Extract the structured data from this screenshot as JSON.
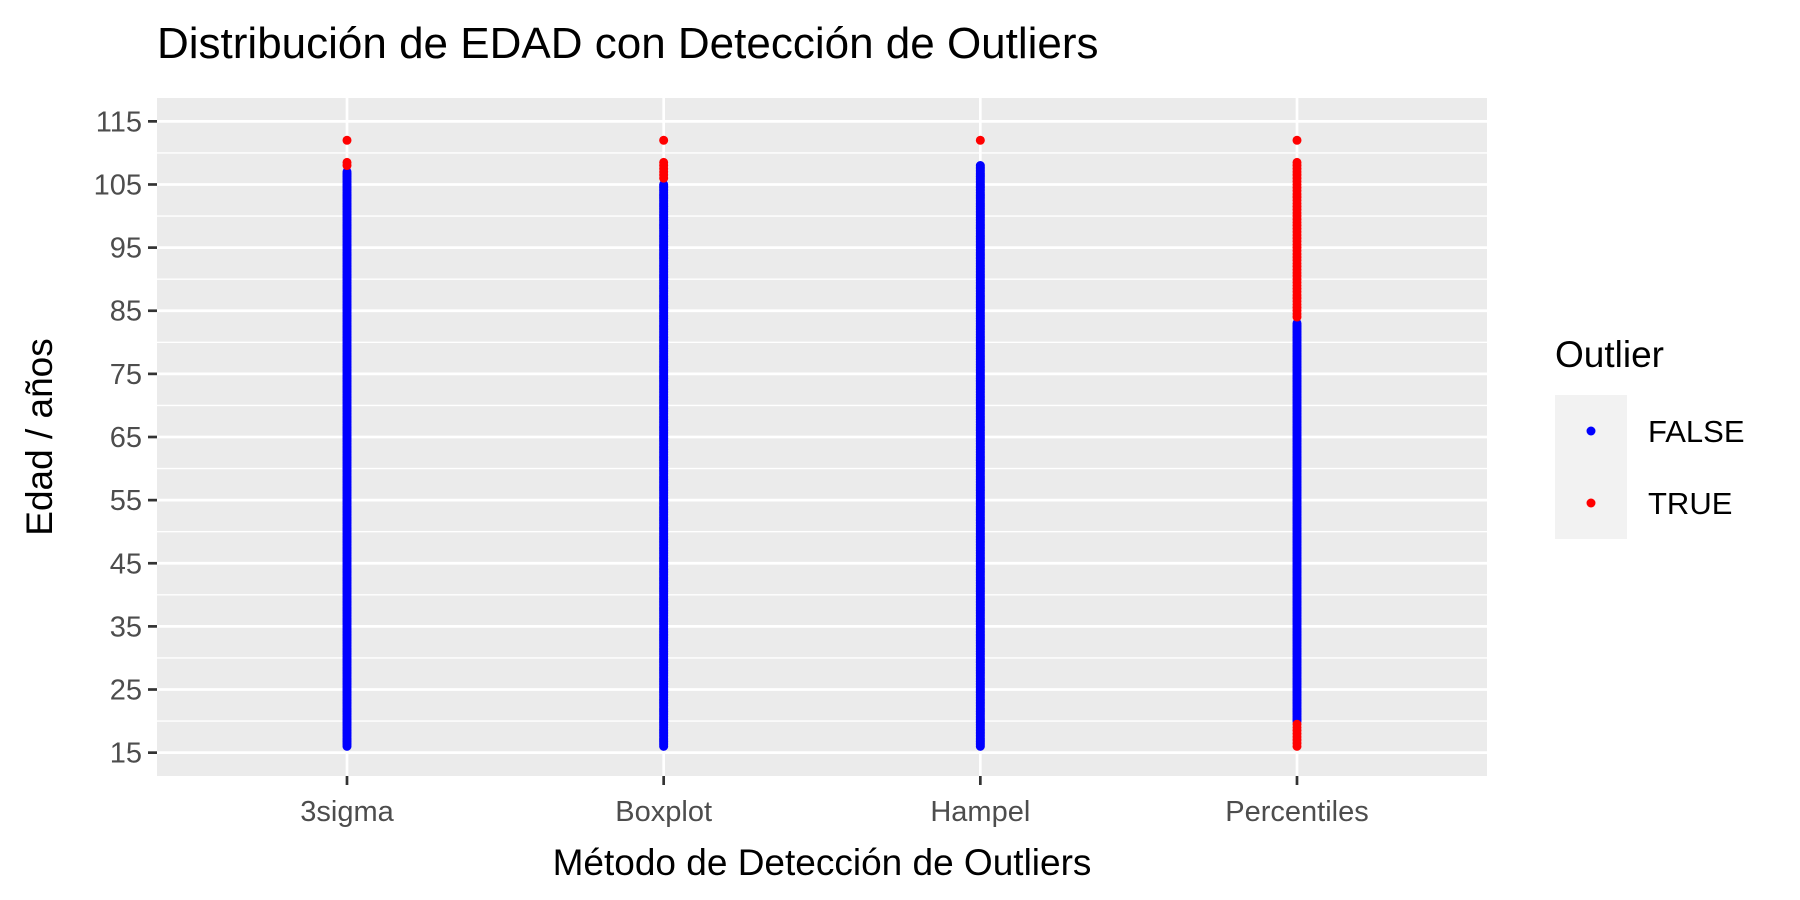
{
  "chart_data": {
    "type": "scatter",
    "title": "Distribución de EDAD con Detección de Outliers",
    "xlabel": "Método de Detección de Outliers",
    "ylabel": "Edad / años",
    "categories": [
      "3sigma",
      "Boxplot",
      "Hampel",
      "Percentiles"
    ],
    "ylim": [
      11.3,
      118.7
    ],
    "yticks": [
      15,
      25,
      35,
      45,
      55,
      65,
      75,
      85,
      95,
      105,
      115
    ],
    "grid": true,
    "legend": {
      "title": "Outlier",
      "placement": "right",
      "entries": [
        {
          "label": "FALSE",
          "color": "#0000ff"
        },
        {
          "label": "TRUE",
          "color": "#ff0000"
        }
      ]
    },
    "series": [
      {
        "category": "3sigma",
        "false_range": [
          16,
          107
        ],
        "true_values": [
          108,
          112
        ]
      },
      {
        "category": "Boxplot",
        "false_range": [
          16,
          105
        ],
        "true_values": [
          106,
          107,
          108,
          112
        ]
      },
      {
        "category": "Hampel",
        "false_range": [
          16,
          108
        ],
        "true_values": [
          112
        ]
      },
      {
        "category": "Percentiles",
        "false_range": [
          20,
          83
        ],
        "true_values": [
          16,
          17,
          18,
          19,
          84,
          85,
          86,
          87,
          88,
          89,
          90,
          91,
          92,
          93,
          94,
          95,
          96,
          97,
          98,
          99,
          100,
          101,
          102,
          103,
          104,
          105,
          106,
          107,
          108,
          112
        ]
      }
    ]
  },
  "colors": {
    "panel_background": "#ebebeb",
    "grid": "#ffffff",
    "outlier_false": "#0000ff",
    "outlier_true": "#ff0000"
  }
}
